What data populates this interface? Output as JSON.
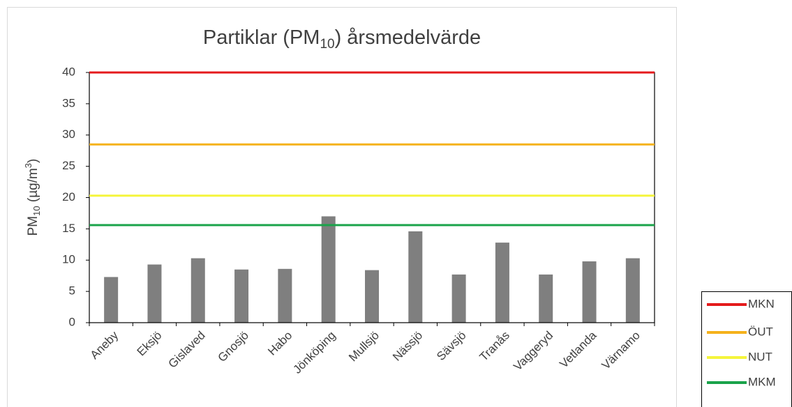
{
  "chart_data": {
    "type": "bar",
    "title": [
      "Partiklar (PM",
      "10",
      ") årsmedelvärde"
    ],
    "y_label": [
      "PM",
      "10",
      " (µg/m",
      "3",
      ")"
    ],
    "categories": [
      "Aneby",
      "Eksjö",
      "Gislaved",
      "Gnosjö",
      "Habo",
      "Jönköping",
      "Mullsjö",
      "Nässjö",
      "Sävsjö",
      "Tranås",
      "Vaggeryd",
      "Vetlanda",
      "Värnamo"
    ],
    "values": [
      7.3,
      9.3,
      10.3,
      8.5,
      8.6,
      17.0,
      8.4,
      14.6,
      7.7,
      12.8,
      7.7,
      9.8,
      10.3
    ],
    "color": "#7f7f7f",
    "reference_lines": [
      {
        "name": "MKN",
        "value": 40,
        "color": "#e41a1c"
      },
      {
        "name": "ÖUT",
        "value": 28.5,
        "color": "#f5b21c"
      },
      {
        "name": "NUT",
        "value": 20.3,
        "color": "#f5f53c"
      },
      {
        "name": "MKM",
        "value": 15.6,
        "color": "#1aa34a"
      }
    ],
    "ylim": [
      0,
      40
    ],
    "yticks": [
      0,
      5,
      10,
      15,
      20,
      25,
      30,
      35,
      40
    ],
    "grid": false
  }
}
